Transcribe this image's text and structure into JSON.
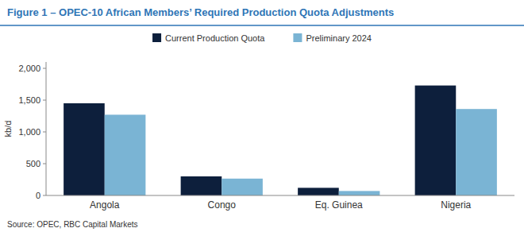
{
  "chart_data": {
    "type": "bar",
    "title": "Figure 1 – OPEC-10 African Members’ Required Production Quota Adjustments",
    "annotations": [
      "Source: OPEC, RBC Capital Markets"
    ],
    "ylabel": "kb/d",
    "categories": [
      "Angola",
      "Congo",
      "Eq. Guinea",
      "Nigeria"
    ],
    "series": [
      {
        "name": "Current Production Quota",
        "color": "#0d1f3c",
        "values": [
          1450,
          300,
          120,
          1730
        ]
      },
      {
        "name": "Preliminary 2024",
        "color": "#7ab4d4",
        "values": [
          1270,
          265,
          70,
          1360
        ]
      }
    ],
    "ylim": [
      0,
      2100
    ],
    "yticks": [
      0,
      500,
      {
        "value": 1000,
        "label": "1,000"
      },
      {
        "value": 1500,
        "label": "1,500"
      },
      {
        "value": 2000,
        "label": "2,000"
      }
    ],
    "grid": false,
    "legend": "top"
  }
}
